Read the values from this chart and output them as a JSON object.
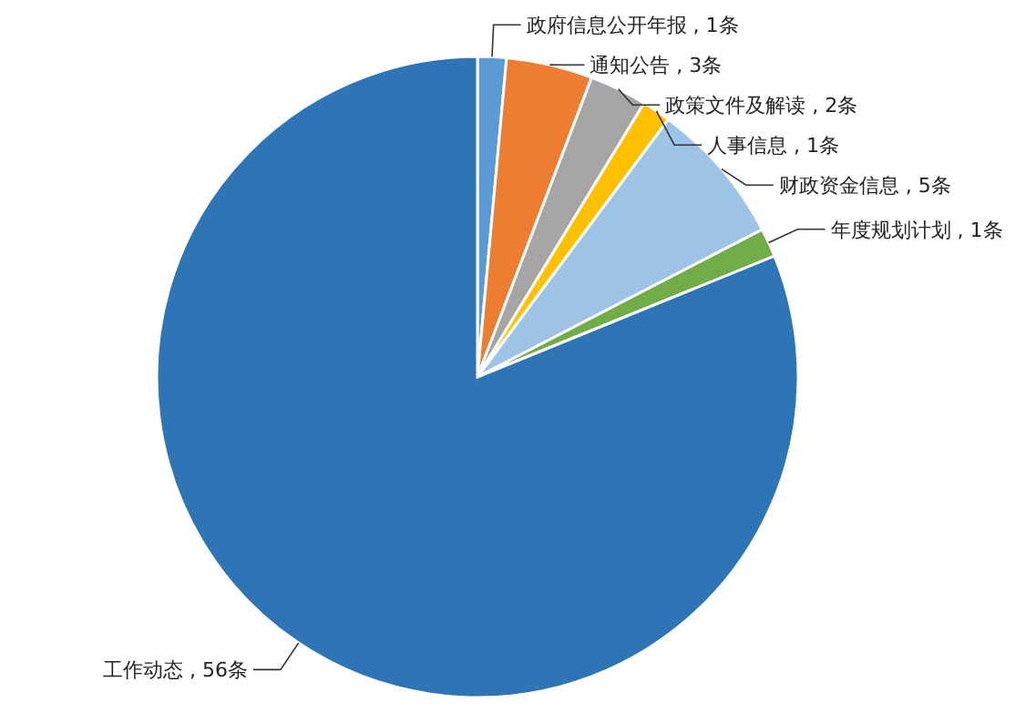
{
  "chart_data": {
    "type": "pie",
    "categories": [
      "政府信息公开年报",
      "通知公告",
      "政策文件及解读",
      "人事信息",
      "财政资金信息",
      "年度规划计划",
      "工作动态"
    ],
    "values": [
      1,
      3,
      2,
      1,
      5,
      1,
      56
    ],
    "value_labels": [
      "1条",
      "3条",
      "2条",
      "1条",
      "5条",
      "1条",
      "56条"
    ],
    "colors": [
      "#5b9bd5",
      "#ed7d31",
      "#a5a5a5",
      "#ffc000",
      "#9dc3e6",
      "#70ad47",
      "#2e75b6"
    ]
  }
}
